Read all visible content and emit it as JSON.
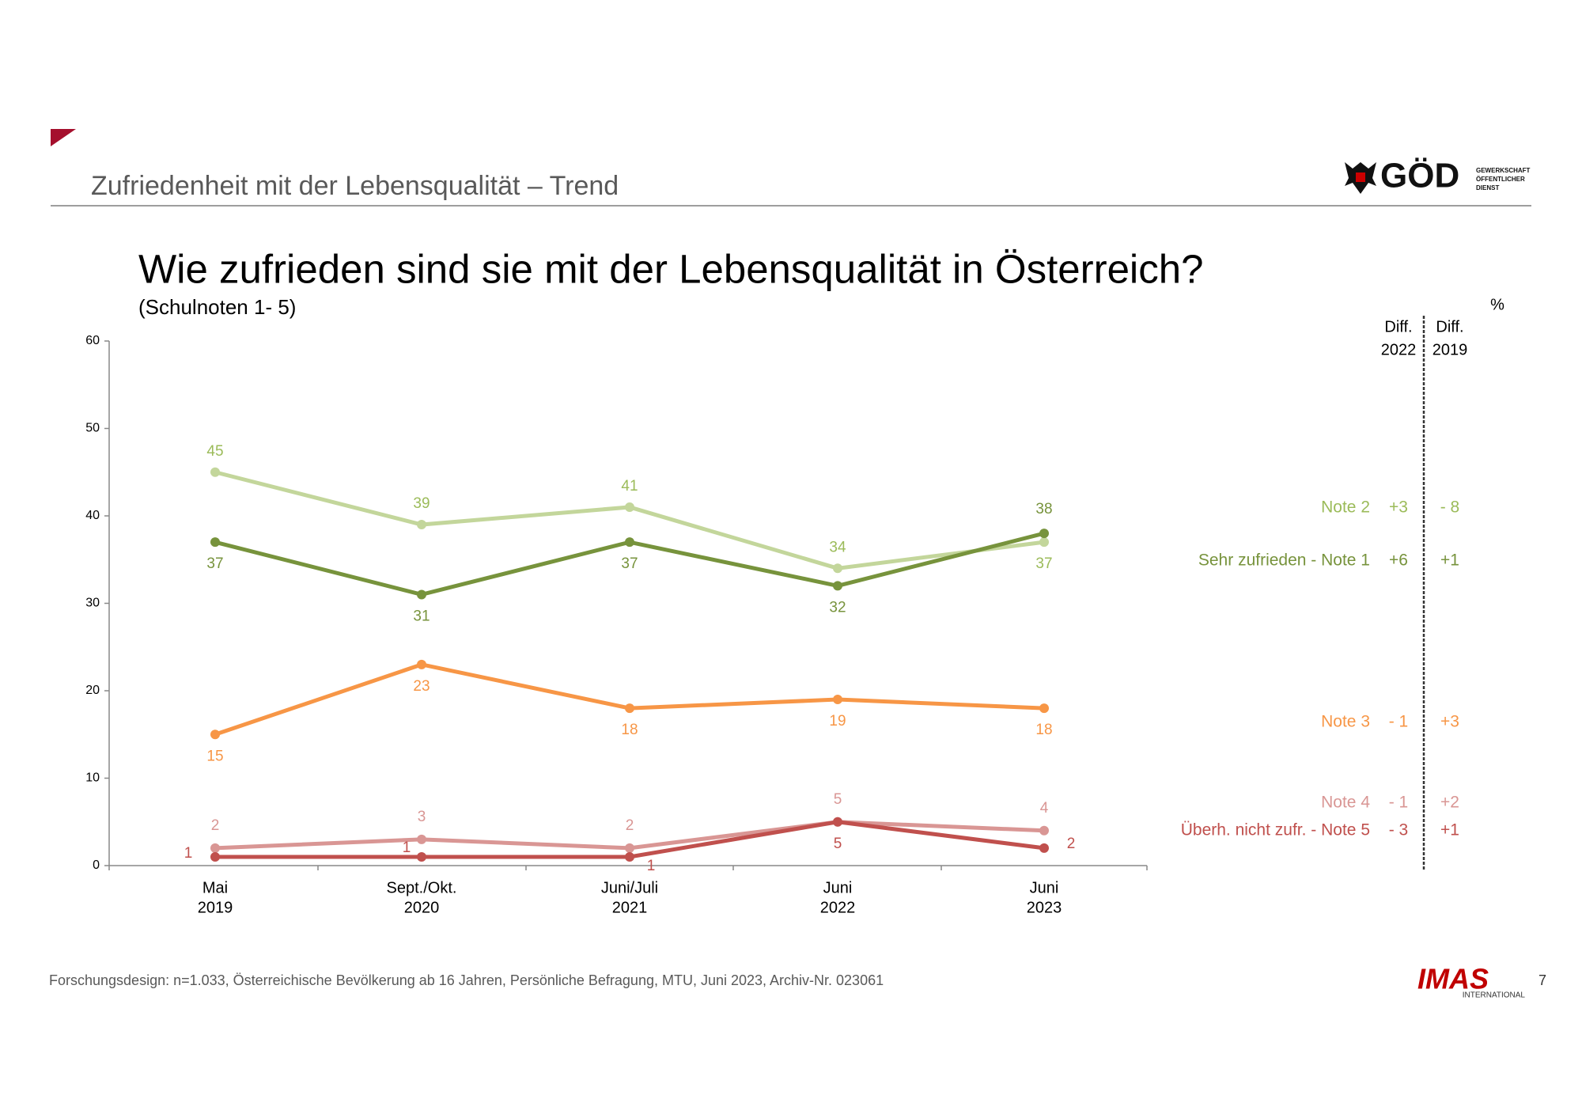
{
  "header": {
    "title": "Zufriedenheit mit der Lebensqualität – Trend",
    "logo": {
      "name": "GÖD",
      "lines": [
        "GEWERKSCHAFT",
        "ÖFFENTLICHER",
        "DIENST"
      ]
    }
  },
  "chart_data": {
    "type": "line",
    "title": "Wie zufrieden sind sie mit der Lebensqualität in Österreich?",
    "subtitle": "(Schulnoten 1- 5)",
    "unit": "%",
    "diff_headers": [
      [
        "Diff.",
        "2022"
      ],
      [
        "Diff.",
        "2019"
      ]
    ],
    "categories": [
      [
        "Mai",
        "2019"
      ],
      [
        "Sept./Okt.",
        "2020"
      ],
      [
        "Juni/Juli",
        "2021"
      ],
      [
        "Juni",
        "2022"
      ],
      [
        "Juni",
        "2023"
      ]
    ],
    "ylim": [
      0,
      60
    ],
    "yticks": [
      0,
      10,
      20,
      30,
      40,
      50,
      60
    ],
    "series": [
      {
        "name": "Note 2",
        "color": "#c3d69b",
        "label_color": "#9bbb59",
        "values": [
          45,
          39,
          41,
          34,
          37
        ],
        "diffs": [
          "+3",
          "- 8"
        ]
      },
      {
        "name": "Sehr zufrieden - Note 1",
        "color": "#77933c",
        "label_color": "#77933c",
        "values": [
          37,
          31,
          37,
          32,
          38
        ],
        "diffs": [
          "+6",
          "+1"
        ]
      },
      {
        "name": "Note 3",
        "color": "#f79646",
        "label_color": "#f79646",
        "values": [
          15,
          23,
          18,
          19,
          18
        ],
        "diffs": [
          "- 1",
          "+3"
        ]
      },
      {
        "name": "Note 4",
        "color": "#d99694",
        "label_color": "#d99694",
        "values": [
          2,
          3,
          2,
          5,
          4
        ],
        "diffs": [
          "- 1",
          "+2"
        ]
      },
      {
        "name": "Überh. nicht zufr. - Note 5",
        "color": "#c0504d",
        "label_color": "#c0504d",
        "values": [
          1,
          1,
          1,
          5,
          2
        ],
        "diffs": [
          "- 3",
          "+1"
        ]
      }
    ]
  },
  "footer": {
    "note": "Forschungsdesign: n=1.033, Österreichische Bevölkerung ab 16 Jahren, Persönliche Befragung, MTU, Juni 2023, Archiv-Nr. 023061",
    "logo": {
      "name": "IMAS",
      "sub": "INTERNATIONAL"
    },
    "page": "7"
  }
}
